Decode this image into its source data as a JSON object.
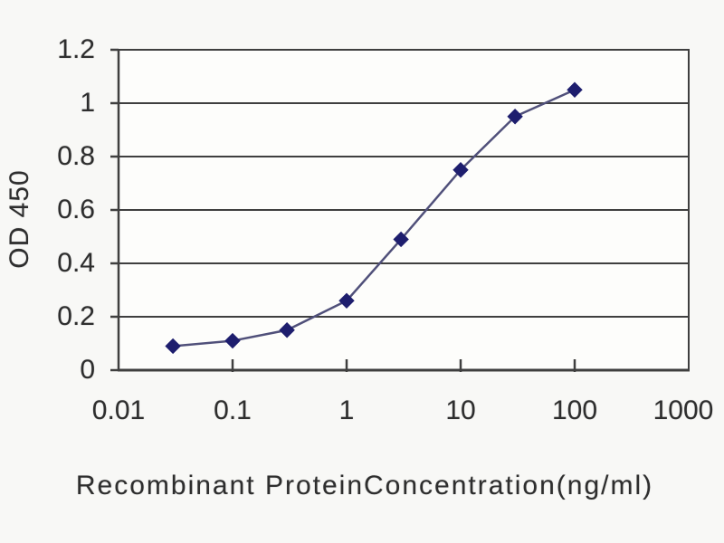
{
  "chart_data": {
    "type": "line",
    "title": "",
    "xlabel": "Recombinant ProteinConcentration(ng/ml)",
    "ylabel": "OD 450",
    "x_scale": "log",
    "y_scale": "linear",
    "xlim": [
      0.01,
      1000
    ],
    "ylim": [
      0,
      1.2
    ],
    "x_ticks": [
      0.01,
      0.1,
      1,
      10,
      100,
      1000
    ],
    "x_ticklabels": [
      "0.01",
      "0.1",
      "1",
      "10",
      "100",
      "1000"
    ],
    "y_ticks": [
      0,
      0.2,
      0.4,
      0.6,
      0.8,
      1,
      1.2
    ],
    "y_ticklabels": [
      "0",
      "0.2",
      "0.4",
      "0.6",
      "0.8",
      "1",
      "1.2"
    ],
    "grid": "horizontal-only",
    "legend": "none",
    "marker": "diamond",
    "series": [
      {
        "name": "OD 450",
        "x": [
          0.03,
          0.1,
          0.3,
          1,
          3,
          10,
          30,
          100
        ],
        "y": [
          0.09,
          0.11,
          0.15,
          0.26,
          0.49,
          0.75,
          0.95,
          1.05
        ]
      }
    ],
    "colors": {
      "marker": "#1e1e6e",
      "line": "#50507a",
      "grid": "#3f3f3f",
      "axis": "#3f3f3f",
      "text": "#2e2e2e",
      "plot_background": "#fdfdfb",
      "page_background": "#f8f8f6"
    }
  }
}
